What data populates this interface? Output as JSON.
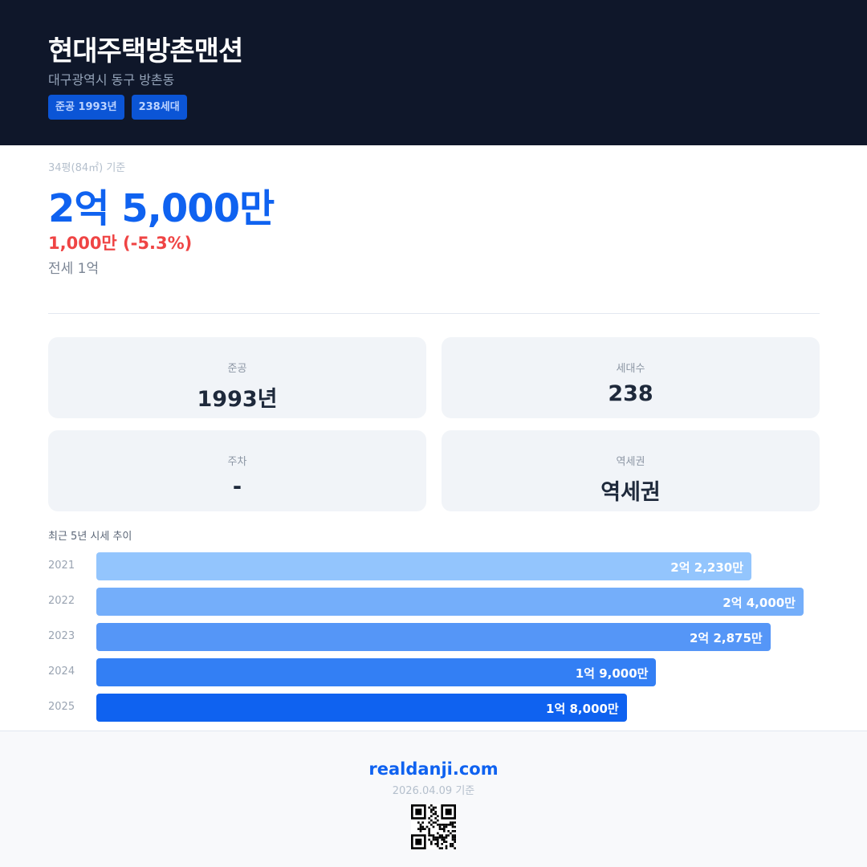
{
  "header": {
    "title": "현대주택방촌맨션",
    "address": "대구광역시 동구 방촌동",
    "badges": [
      "준공 1993년",
      "238세대"
    ]
  },
  "price": {
    "basis": "34평(84㎡) 기준",
    "value": "2억 5,000만",
    "change": "1,000만 (-5.3%)",
    "jeonse": "전세 1억",
    "change_color": "#ef4444",
    "accent": "#0f62f0"
  },
  "stats": [
    {
      "label": "준공",
      "value": "1993년"
    },
    {
      "label": "세대수",
      "value": "238"
    },
    {
      "label": "주차",
      "value": "-"
    },
    {
      "label": "역세권",
      "value": "역세권"
    }
  ],
  "chart_data": {
    "type": "bar",
    "orientation": "horizontal",
    "title": "최근 5년 시세 추이",
    "categories": [
      "2021",
      "2022",
      "2023",
      "2024",
      "2025"
    ],
    "values": [
      22230,
      24000,
      22875,
      19000,
      18000
    ],
    "unit": "만원",
    "labels": [
      "2억 2,230만",
      "2억 4,000만",
      "2억 2,875만",
      "1억 9,000만",
      "1억 8,000만"
    ],
    "colors": [
      "#93c5fd",
      "#74aefa",
      "#5596f7",
      "#337ff4",
      "#0f62f0"
    ]
  },
  "footer": {
    "site": "realdanji.com",
    "date": "2026.04.09 기준"
  }
}
